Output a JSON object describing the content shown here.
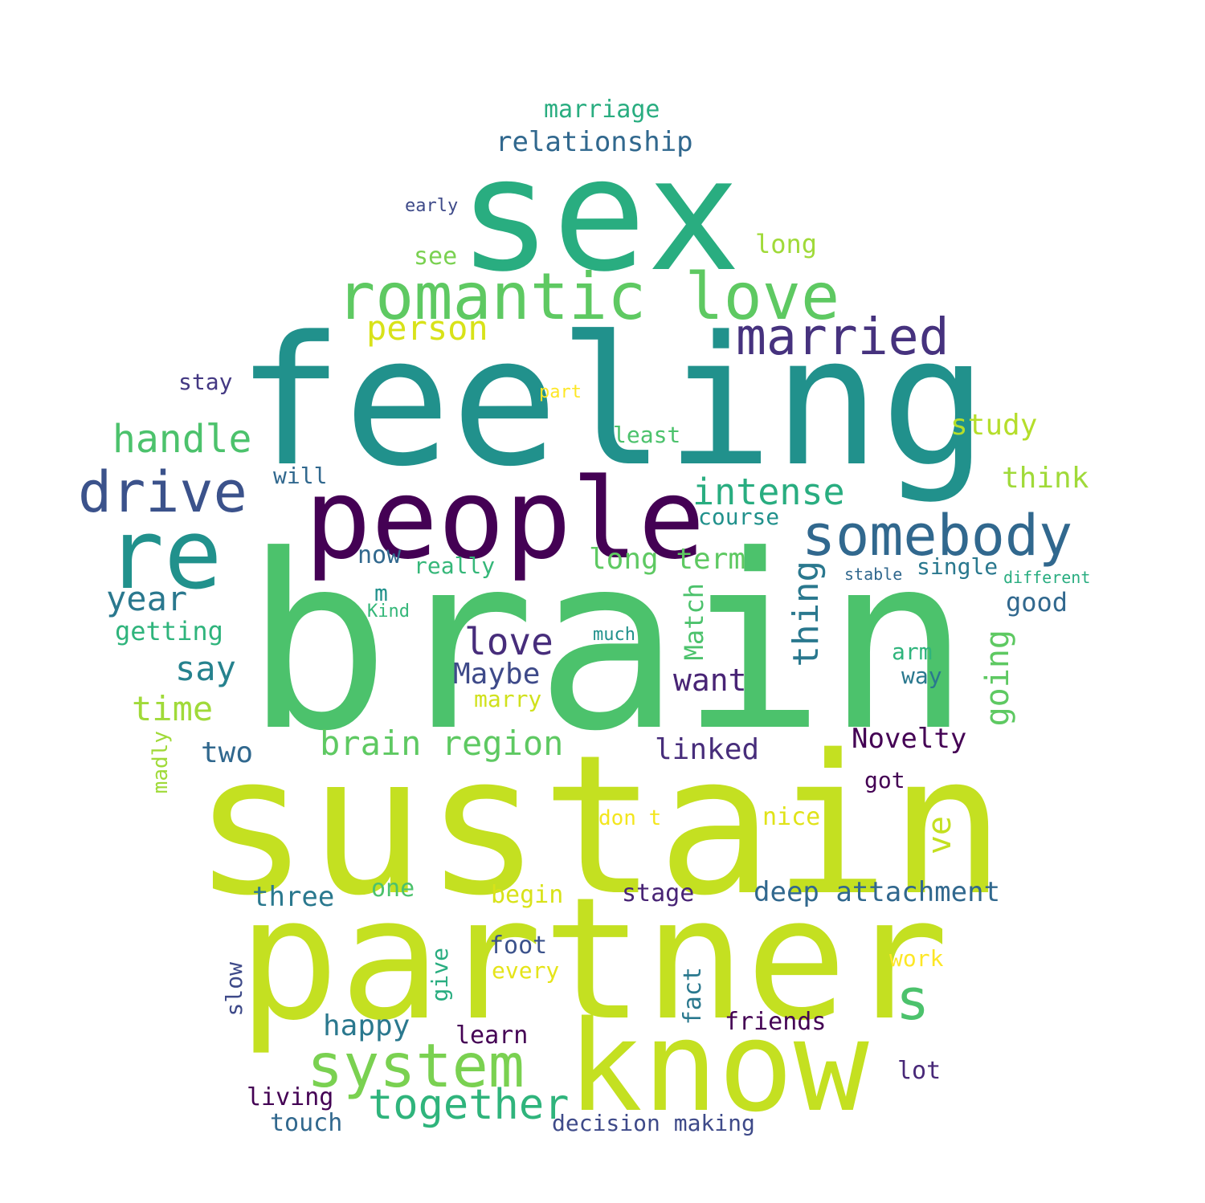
{
  "words": [
    {
      "text": "brain",
      "color": "#4cc26c"
    },
    {
      "text": "sustain",
      "color": "#c4e021"
    },
    {
      "text": "partner",
      "color": "#c4e021"
    },
    {
      "text": "feeling",
      "color": "#21918c"
    },
    {
      "text": "sex",
      "color": "#29ad80"
    },
    {
      "text": "know",
      "color": "#c4e021"
    },
    {
      "text": "people",
      "color": "#440154"
    },
    {
      "text": "re",
      "color": "#21918c"
    },
    {
      "text": "romantic love",
      "color": "#5ec962"
    },
    {
      "text": "system",
      "color": "#7ad151"
    },
    {
      "text": "somebody",
      "color": "#31688e"
    },
    {
      "text": "drive",
      "color": "#3b528b"
    },
    {
      "text": "married",
      "color": "#46327e"
    },
    {
      "text": "together",
      "color": "#2fb47c"
    },
    {
      "text": "s",
      "color": "#4cc26c"
    },
    {
      "text": "handle",
      "color": "#4cc26c"
    },
    {
      "text": "intense",
      "color": "#29ad80"
    },
    {
      "text": "brain region",
      "color": "#5ec962"
    },
    {
      "text": "person",
      "color": "#d8e219"
    },
    {
      "text": "love",
      "color": "#472d7b"
    },
    {
      "text": "thing",
      "color": "#2a788e"
    },
    {
      "text": "year",
      "color": "#2a788e"
    },
    {
      "text": "going",
      "color": "#5ec962"
    },
    {
      "text": "deep attachment",
      "color": "#31688e"
    },
    {
      "text": "time",
      "color": "#a0da39"
    },
    {
      "text": "say",
      "color": "#26828e"
    },
    {
      "text": "long term",
      "color": "#5ec962"
    },
    {
      "text": "want",
      "color": "#482475"
    },
    {
      "text": "relationship",
      "color": "#31688e"
    },
    {
      "text": "happy",
      "color": "#2a788e"
    },
    {
      "text": "linked",
      "color": "#472d7b"
    },
    {
      "text": "Maybe",
      "color": "#3e4a89"
    },
    {
      "text": "think",
      "color": "#a0da39"
    },
    {
      "text": "Novelty",
      "color": "#440154"
    },
    {
      "text": "study",
      "color": "#b5de2b"
    },
    {
      "text": "ve",
      "color": "#c4e021"
    },
    {
      "text": "two",
      "color": "#31688e"
    },
    {
      "text": "three",
      "color": "#2a788e"
    },
    {
      "text": "Match",
      "color": "#4cc26c"
    },
    {
      "text": "marriage",
      "color": "#29ad80"
    },
    {
      "text": "getting",
      "color": "#2fb47c"
    },
    {
      "text": "long",
      "color": "#a0da39"
    },
    {
      "text": "good",
      "color": "#31688e"
    },
    {
      "text": "touch",
      "color": "#31688e"
    },
    {
      "text": "learn",
      "color": "#440154"
    },
    {
      "text": "friends",
      "color": "#440154"
    },
    {
      "text": "living",
      "color": "#440154"
    },
    {
      "text": "decision making",
      "color": "#3e4a89"
    },
    {
      "text": "foot",
      "color": "#3b528b"
    },
    {
      "text": "stage",
      "color": "#482475"
    },
    {
      "text": "begin",
      "color": "#d8e219"
    },
    {
      "text": "one",
      "color": "#4cc26c"
    },
    {
      "text": "now",
      "color": "#31688e"
    },
    {
      "text": "really",
      "color": "#35b779"
    },
    {
      "text": "see",
      "color": "#7ad151"
    },
    {
      "text": "nice",
      "color": "#e0e318"
    },
    {
      "text": "lot",
      "color": "#482878"
    },
    {
      "text": "work",
      "color": "#fde725"
    },
    {
      "text": "every",
      "color": "#e5e419"
    },
    {
      "text": "marry",
      "color": "#d0e11c"
    },
    {
      "text": "single",
      "color": "#2a788e"
    },
    {
      "text": "course",
      "color": "#21918c"
    },
    {
      "text": "will",
      "color": "#31688e"
    },
    {
      "text": "stay",
      "color": "#443983"
    },
    {
      "text": "least",
      "color": "#4cc26c"
    },
    {
      "text": "got",
      "color": "#440154"
    },
    {
      "text": "fact",
      "color": "#2a788e"
    },
    {
      "text": "give",
      "color": "#29ad80"
    },
    {
      "text": "slow",
      "color": "#3e4a89"
    },
    {
      "text": "m",
      "color": "#21918c"
    },
    {
      "text": "arm",
      "color": "#2fb47c"
    },
    {
      "text": "way",
      "color": "#2a788e"
    },
    {
      "text": "don t",
      "color": "#f3e61e"
    },
    {
      "text": "madly",
      "color": "#a0da39"
    },
    {
      "text": "early",
      "color": "#3e4a89"
    },
    {
      "text": "part",
      "color": "#fde725"
    },
    {
      "text": "much",
      "color": "#21918c"
    },
    {
      "text": "Kind",
      "color": "#35b779"
    },
    {
      "text": "stable",
      "color": "#31688e"
    },
    {
      "text": "different",
      "color": "#29ad80"
    }
  ]
}
